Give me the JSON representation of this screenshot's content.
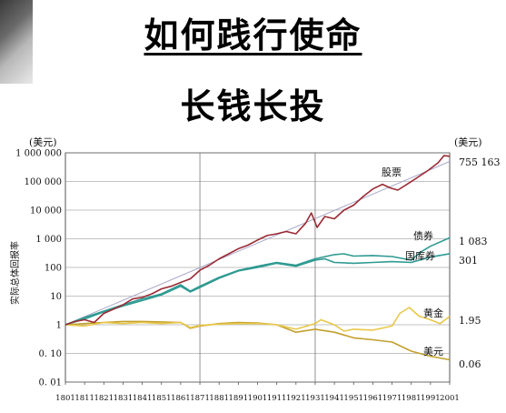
{
  "heading": "如何践行使命",
  "subheading": "长钱长投",
  "chart_data": {
    "type": "line",
    "ylabel": "实际总体回报率",
    "y_scale": "log",
    "ylim": [
      0.01,
      1000000
    ],
    "xlim": [
      1801,
      2001
    ],
    "unit_left": "(美元)",
    "unit_right": "(美元)",
    "y_ticks": [
      {
        "value": 1000000,
        "label": "1 000 000"
      },
      {
        "value": 100000,
        "label": "100 000"
      },
      {
        "value": 10000,
        "label": "10 000"
      },
      {
        "value": 1000,
        "label": "1 000"
      },
      {
        "value": 100,
        "label": "100"
      },
      {
        "value": 10,
        "label": "10"
      },
      {
        "value": 1,
        "label": "1"
      },
      {
        "value": 0.1,
        "label": "0. 10"
      },
      {
        "value": 0.01,
        "label": "0. 01"
      }
    ],
    "x_ticks": [
      1801,
      1811,
      1821,
      1831,
      1841,
      1851,
      1861,
      1871,
      1881,
      1891,
      1901,
      1911,
      1921,
      1931,
      1941,
      1951,
      1961,
      1971,
      1981,
      1991,
      2001
    ],
    "gridlines_x": [
      1871,
      1931
    ],
    "series": [
      {
        "name": "股票",
        "color": "#9b2a35",
        "end_label": "755 163",
        "points": [
          [
            1801,
            1
          ],
          [
            1806,
            1.3
          ],
          [
            1811,
            1.5
          ],
          [
            1816,
            1.2
          ],
          [
            1821,
            2.5
          ],
          [
            1826,
            3.5
          ],
          [
            1831,
            5
          ],
          [
            1836,
            8
          ],
          [
            1841,
            9
          ],
          [
            1846,
            12
          ],
          [
            1851,
            18
          ],
          [
            1856,
            22
          ],
          [
            1861,
            30
          ],
          [
            1866,
            40
          ],
          [
            1871,
            80
          ],
          [
            1876,
            120
          ],
          [
            1881,
            200
          ],
          [
            1886,
            300
          ],
          [
            1891,
            450
          ],
          [
            1896,
            600
          ],
          [
            1901,
            900
          ],
          [
            1906,
            1300
          ],
          [
            1911,
            1500
          ],
          [
            1916,
            1800
          ],
          [
            1921,
            1500
          ],
          [
            1926,
            3500
          ],
          [
            1929,
            8000
          ],
          [
            1932,
            2500
          ],
          [
            1936,
            6000
          ],
          [
            1941,
            5000
          ],
          [
            1946,
            10000
          ],
          [
            1951,
            15000
          ],
          [
            1956,
            30000
          ],
          [
            1961,
            55000
          ],
          [
            1966,
            80000
          ],
          [
            1970,
            60000
          ],
          [
            1974,
            50000
          ],
          [
            1980,
            90000
          ],
          [
            1985,
            150000
          ],
          [
            1990,
            250000
          ],
          [
            1995,
            450000
          ],
          [
            1998,
            800000
          ],
          [
            2001,
            755163
          ]
        ]
      },
      {
        "name": "债券",
        "color": "#2f9a92",
        "end_label": "1 083",
        "points": [
          [
            1801,
            1
          ],
          [
            1811,
            1.8
          ],
          [
            1821,
            3
          ],
          [
            1831,
            5
          ],
          [
            1841,
            8
          ],
          [
            1851,
            12
          ],
          [
            1861,
            25
          ],
          [
            1866,
            15
          ],
          [
            1871,
            22
          ],
          [
            1881,
            45
          ],
          [
            1891,
            80
          ],
          [
            1901,
            110
          ],
          [
            1911,
            150
          ],
          [
            1921,
            120
          ],
          [
            1931,
            200
          ],
          [
            1941,
            280
          ],
          [
            1946,
            300
          ],
          [
            1951,
            250
          ],
          [
            1961,
            260
          ],
          [
            1971,
            240
          ],
          [
            1981,
            180
          ],
          [
            1986,
            350
          ],
          [
            1991,
            550
          ],
          [
            2001,
            1083
          ]
        ]
      },
      {
        "name": "国库券",
        "color": "#2f9a92",
        "end_label": "301",
        "points": [
          [
            1801,
            1
          ],
          [
            1811,
            1.6
          ],
          [
            1821,
            2.8
          ],
          [
            1831,
            4.5
          ],
          [
            1841,
            7
          ],
          [
            1851,
            11
          ],
          [
            1861,
            22
          ],
          [
            1866,
            14
          ],
          [
            1871,
            20
          ],
          [
            1881,
            42
          ],
          [
            1891,
            75
          ],
          [
            1901,
            100
          ],
          [
            1911,
            140
          ],
          [
            1921,
            110
          ],
          [
            1931,
            180
          ],
          [
            1936,
            200
          ],
          [
            1941,
            150
          ],
          [
            1951,
            140
          ],
          [
            1961,
            150
          ],
          [
            1971,
            160
          ],
          [
            1981,
            150
          ],
          [
            1991,
            230
          ],
          [
            2001,
            301
          ]
        ]
      },
      {
        "name": "黄金",
        "color": "#e8c84a",
        "end_label": "1.95",
        "points": [
          [
            1801,
            1
          ],
          [
            1811,
            0.9
          ],
          [
            1821,
            1.2
          ],
          [
            1831,
            1.1
          ],
          [
            1841,
            1.2
          ],
          [
            1851,
            1.1
          ],
          [
            1861,
            1.2
          ],
          [
            1866,
            0.8
          ],
          [
            1871,
            0.95
          ],
          [
            1881,
            1.05
          ],
          [
            1891,
            1.1
          ],
          [
            1901,
            1.1
          ],
          [
            1911,
            1.0
          ],
          [
            1921,
            0.7
          ],
          [
            1931,
            1.1
          ],
          [
            1934,
            1.5
          ],
          [
            1941,
            1.0
          ],
          [
            1946,
            0.6
          ],
          [
            1951,
            0.7
          ],
          [
            1961,
            0.65
          ],
          [
            1971,
            0.9
          ],
          [
            1975,
            2.5
          ],
          [
            1980,
            4.0
          ],
          [
            1985,
            2.0
          ],
          [
            1991,
            1.5
          ],
          [
            1996,
            1.1
          ],
          [
            2001,
            1.95
          ]
        ]
      },
      {
        "name": "美元",
        "color": "#c3a02c",
        "end_label": "0.06",
        "points": [
          [
            1801,
            1
          ],
          [
            1811,
            1.1
          ],
          [
            1821,
            1.2
          ],
          [
            1831,
            1.3
          ],
          [
            1841,
            1.3
          ],
          [
            1851,
            1.25
          ],
          [
            1861,
            1.2
          ],
          [
            1866,
            0.75
          ],
          [
            1871,
            0.9
          ],
          [
            1881,
            1.1
          ],
          [
            1891,
            1.2
          ],
          [
            1901,
            1.15
          ],
          [
            1911,
            1.0
          ],
          [
            1921,
            0.55
          ],
          [
            1931,
            0.7
          ],
          [
            1941,
            0.55
          ],
          [
            1951,
            0.35
          ],
          [
            1961,
            0.3
          ],
          [
            1971,
            0.25
          ],
          [
            1981,
            0.12
          ],
          [
            1991,
            0.08
          ],
          [
            2001,
            0.06
          ]
        ]
      }
    ],
    "trend": {
      "color": "#a8a8c8",
      "from": [
        1801,
        1
      ],
      "to": [
        2001,
        500000
      ]
    }
  }
}
